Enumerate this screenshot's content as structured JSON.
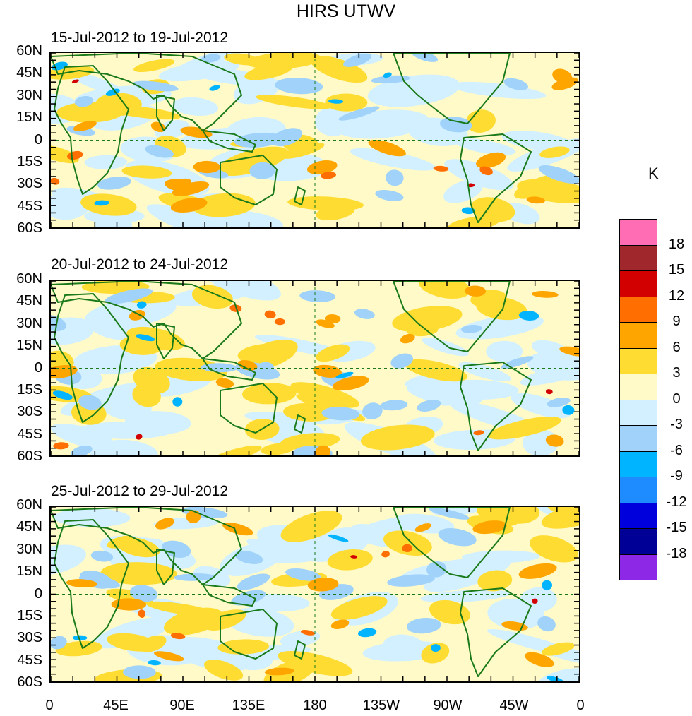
{
  "title": "HIRS UTWV",
  "panels": [
    {
      "label": "15-Jul-2012 to 19-Jul-2012"
    },
    {
      "label": "20-Jul-2012 to 24-Jul-2012"
    },
    {
      "label": "25-Jul-2012 to 29-Jul-2012"
    }
  ],
  "lat_labels": [
    "60N",
    "45N",
    "30N",
    "15N",
    "0",
    "15S",
    "30S",
    "45S",
    "60S"
  ],
  "lon_labels": [
    "0",
    "45E",
    "90E",
    "135E",
    "180",
    "135W",
    "90W",
    "45W",
    "0"
  ],
  "colorbar": {
    "unit": "K",
    "labels": [
      "18",
      "15",
      "12",
      "9",
      "6",
      "3",
      "0",
      "-3",
      "-6",
      "-9",
      "-12",
      "-15",
      "-18"
    ],
    "colors": [
      "#ff6eb4",
      "#a0282d",
      "#d20000",
      "#ff6e00",
      "#ffa500",
      "#ffdc32",
      "#fffac8",
      "#d2f0ff",
      "#a0d2fa",
      "#00b4ff",
      "#1e8cff",
      "#0000dc",
      "#000096",
      "#8c28e6"
    ]
  }
}
